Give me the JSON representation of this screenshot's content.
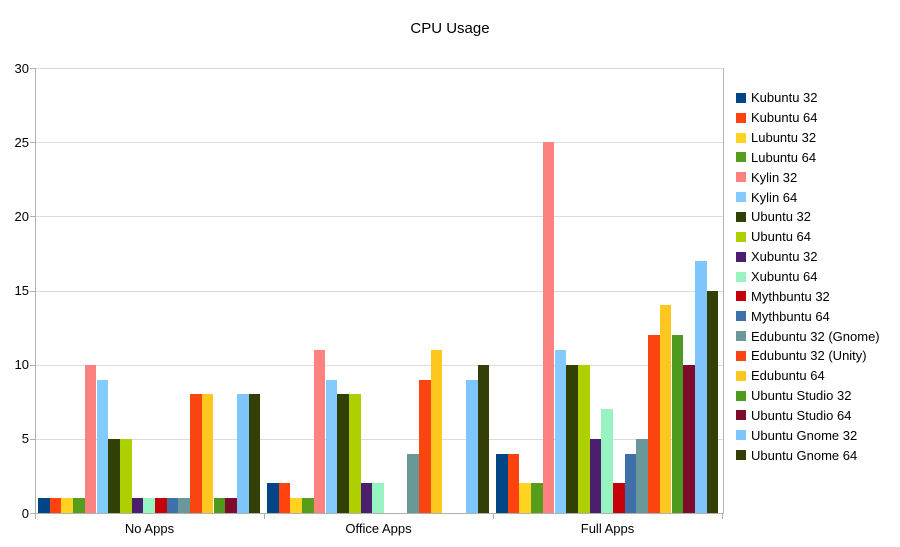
{
  "chart_data": {
    "type": "bar",
    "title": "CPU Usage",
    "xlabel": "",
    "ylabel": "",
    "ylim": [
      0,
      30
    ],
    "yticks": [
      0,
      5,
      10,
      15,
      20,
      25,
      30
    ],
    "grid": true,
    "legend_position": "right",
    "categories": [
      "No Apps",
      "Office Apps",
      "Full Apps"
    ],
    "series": [
      {
        "name": "Kubuntu 32",
        "color": "#004586",
        "values": [
          1,
          2,
          4
        ]
      },
      {
        "name": "Kubuntu 64",
        "color": "#ff420e",
        "values": [
          1,
          2,
          4
        ]
      },
      {
        "name": "Lubuntu 32",
        "color": "#ffd320",
        "values": [
          1,
          1,
          2
        ]
      },
      {
        "name": "Lubuntu 64",
        "color": "#579d1c",
        "values": [
          1,
          1,
          2
        ]
      },
      {
        "name": "Kylin 32",
        "color": "#fc8181",
        "values": [
          10,
          11,
          25
        ]
      },
      {
        "name": "Kylin 64",
        "color": "#83caff",
        "values": [
          9,
          9,
          11
        ]
      },
      {
        "name": "Ubuntu 32",
        "color": "#314004",
        "values": [
          5,
          8,
          10
        ]
      },
      {
        "name": "Ubuntu 64",
        "color": "#aecf00",
        "values": [
          5,
          8,
          10
        ]
      },
      {
        "name": "Xubuntu 32",
        "color": "#4b1f6f",
        "values": [
          1,
          2,
          5
        ]
      },
      {
        "name": "Xubuntu 64",
        "color": "#97f4c1",
        "values": [
          1,
          2,
          7
        ]
      },
      {
        "name": "Mythbuntu 32",
        "color": "#c5000b",
        "values": [
          1,
          0,
          2
        ]
      },
      {
        "name": "Mythbuntu 64",
        "color": "#3e70aa",
        "values": [
          1,
          0,
          4
        ]
      },
      {
        "name": "Edubuntu 32 (Gnome)",
        "color": "#6a9898",
        "values": [
          1,
          4,
          5
        ]
      },
      {
        "name": "Edubuntu 32 (Unity)",
        "color": "#fb4511",
        "values": [
          8,
          9,
          12
        ]
      },
      {
        "name": "Edubuntu 64",
        "color": "#fdc720",
        "values": [
          8,
          11,
          14
        ]
      },
      {
        "name": "Ubuntu Studio 32",
        "color": "#4e9a1e",
        "values": [
          1,
          0,
          12
        ]
      },
      {
        "name": "Ubuntu Studio 64",
        "color": "#7e0a2c",
        "values": [
          1,
          0,
          10
        ]
      },
      {
        "name": "Ubuntu Gnome 32",
        "color": "#7ec5fc",
        "values": [
          8,
          9,
          17
        ]
      },
      {
        "name": "Ubuntu Gnome 64",
        "color": "#333f06",
        "values": [
          8,
          10,
          15
        ]
      }
    ]
  },
  "colors": {
    "background": "#ffffff",
    "axis_line": "#b0b0b0",
    "gridline": "#dcdcdc",
    "text": "#000000"
  }
}
